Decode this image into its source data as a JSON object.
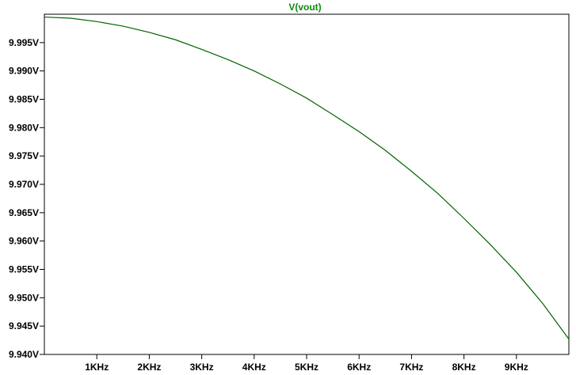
{
  "colors": {
    "background": "#ffffff",
    "axis": "#000000",
    "trace": "#006400",
    "title": "#0a8a0a"
  },
  "chart_data": {
    "type": "line",
    "title": "V(vout)",
    "xlabel": "",
    "ylabel": "",
    "x_scale": "linear",
    "xlim": [
      0,
      10000
    ],
    "ylim": [
      9.94,
      10.0
    ],
    "grid": false,
    "x_ticks": [
      {
        "value": 1000,
        "label": "1KHz"
      },
      {
        "value": 2000,
        "label": "2KHz"
      },
      {
        "value": 3000,
        "label": "3KHz"
      },
      {
        "value": 4000,
        "label": "4KHz"
      },
      {
        "value": 5000,
        "label": "5KHz"
      },
      {
        "value": 6000,
        "label": "6KHz"
      },
      {
        "value": 7000,
        "label": "7KHz"
      },
      {
        "value": 8000,
        "label": "8KHz"
      },
      {
        "value": 9000,
        "label": "9KHz"
      }
    ],
    "y_ticks": [
      {
        "value": 9.94,
        "label": "9.940V"
      },
      {
        "value": 9.945,
        "label": "9.945V"
      },
      {
        "value": 9.95,
        "label": "9.950V"
      },
      {
        "value": 9.955,
        "label": "9.955V"
      },
      {
        "value": 9.96,
        "label": "9.960V"
      },
      {
        "value": 9.965,
        "label": "9.965V"
      },
      {
        "value": 9.97,
        "label": "9.970V"
      },
      {
        "value": 9.975,
        "label": "9.975V"
      },
      {
        "value": 9.98,
        "label": "9.980V"
      },
      {
        "value": 9.985,
        "label": "9.985V"
      },
      {
        "value": 9.99,
        "label": "9.990V"
      },
      {
        "value": 9.995,
        "label": "9.995V"
      }
    ],
    "series": [
      {
        "name": "V(vout)",
        "x": [
          0,
          500,
          1000,
          1500,
          2000,
          2500,
          3000,
          3500,
          4000,
          4500,
          5000,
          5500,
          6000,
          6500,
          7000,
          7500,
          8000,
          8500,
          9000,
          9500,
          10000
        ],
        "y": [
          9.9995,
          9.9993,
          9.9987,
          9.9979,
          9.9968,
          9.9955,
          9.9938,
          9.992,
          9.99,
          9.9877,
          9.9852,
          9.9823,
          9.9793,
          9.976,
          9.9723,
          9.9684,
          9.964,
          9.9594,
          9.9545,
          9.949,
          9.9427
        ]
      }
    ]
  }
}
